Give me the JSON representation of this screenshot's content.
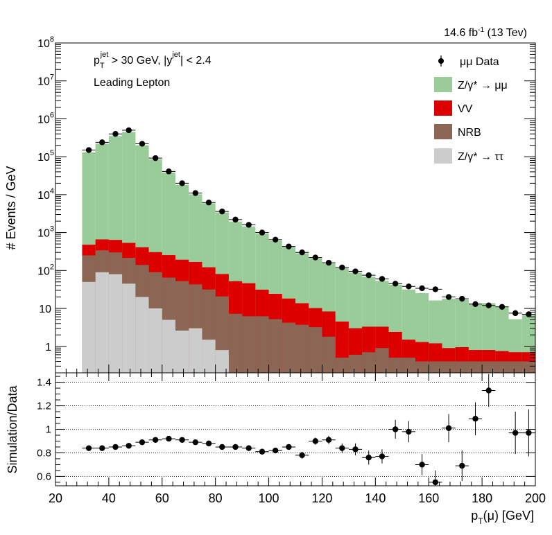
{
  "header": {
    "lumi_label": "14.6 fb",
    "lumi_sup": "-1",
    "energy": " (13 Tev)"
  },
  "annotations": {
    "cut_pt_p": "p",
    "cut_pt_sub": "T",
    "cut_pt_sup": "jet",
    "cut_pt_rest": " > 30 GeV,  |y",
    "cut_y_sup": "jet",
    "cut_y_rest": "| < 2.4",
    "selection": "Leading Lepton"
  },
  "legend": {
    "data": "μμ Data",
    "zmm": "Z/γ* → μμ",
    "vv": "VV",
    "nrb": "NRB",
    "ztt": "Z/γ* → ττ"
  },
  "colors": {
    "zmm": "#99cc99",
    "vv": "#dd0000",
    "nrb": "#8b6654",
    "ztt": "#cccccc",
    "data": "#000000"
  },
  "chart_data": [
    {
      "type": "bar",
      "stacked": true,
      "log_y": true,
      "ylabel": "# Events / GeV",
      "xlim": [
        20,
        200
      ],
      "ylim": [
        0.2,
        100000000
      ],
      "y_tick_labels": [
        "1",
        "10",
        "10^2",
        "10^3",
        "10^4",
        "10^5",
        "10^6",
        "10^7",
        "10^8"
      ],
      "bin_edges": [
        30,
        35,
        40,
        45,
        50,
        55,
        60,
        65,
        70,
        75,
        80,
        85,
        90,
        95,
        100,
        105,
        110,
        115,
        120,
        125,
        130,
        135,
        140,
        145,
        150,
        155,
        160,
        165,
        170,
        175,
        180,
        185,
        190,
        195,
        200
      ],
      "series": [
        {
          "name": "Z/γ* → ττ",
          "values": [
            50,
            90,
            80,
            45,
            20,
            10,
            5,
            2.6,
            3,
            1.5,
            0.8,
            0.2,
            0.2,
            0.2,
            0.2,
            0.2,
            0.2,
            0.2,
            0.2,
            0.2,
            0.2,
            0.2,
            0.2,
            0.2,
            0.2,
            0.2,
            0.2,
            0.2,
            0.2,
            0.2,
            0.2,
            0.2,
            0.2,
            0.2
          ]
        },
        {
          "name": "NRB",
          "values": [
            200,
            250,
            220,
            170,
            120,
            80,
            60,
            50,
            40,
            30,
            20,
            7,
            6,
            6,
            5,
            4,
            3.5,
            3,
            1.6,
            0.3,
            0.4,
            0.5,
            0.7,
            0.3,
            0.3,
            0.2,
            0.2,
            0.2,
            0.2,
            0.2,
            0.2,
            0.2,
            0.2,
            0.2
          ]
        },
        {
          "name": "VV",
          "values": [
            230,
            320,
            340,
            320,
            270,
            215,
            190,
            140,
            125,
            90,
            60,
            45,
            40,
            25,
            19,
            14,
            10,
            7,
            6.5,
            4,
            2.4,
            2.6,
            2.4,
            1.9,
            1,
            0.9,
            0.8,
            0.5,
            0.55,
            0.4,
            0.4,
            0.35,
            0.3,
            0.3
          ]
        },
        {
          "name": "Z/γ* → μμ",
          "values": [
            130000,
            220000,
            350000,
            450000,
            200000,
            85000,
            38000,
            18000,
            10000,
            5800,
            3300,
            1900,
            1400,
            900,
            580,
            400,
            270,
            200,
            145,
            110,
            85,
            65,
            50,
            40,
            30,
            24,
            15,
            17,
            16,
            12,
            13,
            10,
            4.5,
            6
          ]
        }
      ],
      "data": {
        "name": "μμ Data",
        "x": [
          32.5,
          37.5,
          42.5,
          47.5,
          52.5,
          57.5,
          62.5,
          67.5,
          72.5,
          77.5,
          82.5,
          87.5,
          92.5,
          97.5,
          102.5,
          107.5,
          112.5,
          117.5,
          122.5,
          127.5,
          132.5,
          137.5,
          142.5,
          147.5,
          152.5,
          157.5,
          162.5,
          167.5,
          172.5,
          177.5,
          182.5,
          187.5,
          192.5,
          197.5
        ],
        "y": [
          150000,
          240000,
          400000,
          500000,
          220000,
          92000,
          41000,
          20000,
          11000,
          6200,
          3600,
          2200,
          1600,
          1000,
          650,
          430,
          300,
          220,
          160,
          120,
          95,
          75,
          60,
          45,
          38,
          34,
          32,
          20,
          18,
          13,
          12,
          11,
          7.5,
          7
        ]
      }
    },
    {
      "type": "scatter",
      "xlabel": "p_T(μ) [GeV]",
      "ylabel": "Simulation/Data",
      "xlim": [
        20,
        200
      ],
      "ylim": [
        0.52,
        1.48
      ],
      "x_ticks": [
        20,
        40,
        60,
        80,
        100,
        120,
        140,
        160,
        180,
        200
      ],
      "y_ticks": [
        0.6,
        0.8,
        1,
        1.2,
        1.4
      ],
      "x": [
        32.5,
        37.5,
        42.5,
        47.5,
        52.5,
        57.5,
        62.5,
        67.5,
        72.5,
        77.5,
        82.5,
        87.5,
        92.5,
        97.5,
        102.5,
        107.5,
        112.5,
        117.5,
        122.5,
        127.5,
        132.5,
        137.5,
        142.5,
        147.5,
        152.5,
        157.5,
        162.5,
        167.5,
        172.5,
        177.5,
        182.5,
        192.5,
        197.5
      ],
      "y": [
        0.84,
        0.84,
        0.85,
        0.86,
        0.89,
        0.91,
        0.92,
        0.91,
        0.89,
        0.88,
        0.85,
        0.85,
        0.84,
        0.81,
        0.82,
        0.85,
        0.78,
        0.9,
        0.91,
        0.84,
        0.83,
        0.76,
        0.77,
        1.0,
        0.98,
        0.7,
        0.55,
        1.01,
        0.69,
        1.09,
        1.33,
        0.97,
        0.97
      ],
      "err": [
        0.004,
        0.004,
        0.004,
        0.004,
        0.004,
        0.005,
        0.005,
        0.006,
        0.007,
        0.008,
        0.01,
        0.012,
        0.015,
        0.018,
        0.02,
        0.02,
        0.03,
        0.03,
        0.035,
        0.04,
        0.05,
        0.06,
        0.06,
        0.08,
        0.09,
        0.09,
        0.1,
        0.12,
        0.13,
        0.14,
        0.14,
        0.18,
        0.2
      ]
    }
  ]
}
